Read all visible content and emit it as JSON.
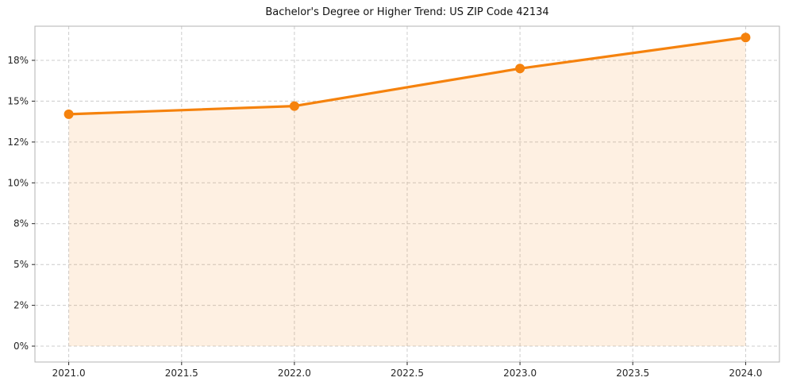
{
  "chart_data": {
    "type": "line",
    "title": "Bachelor's Degree or Higher Trend: US ZIP Code 42134",
    "xlabel": "",
    "ylabel": "",
    "x": [
      2021,
      2022,
      2023,
      2024
    ],
    "values": [
      14.2,
      14.7,
      17.0,
      18.9
    ],
    "area_fill": true,
    "area_baseline": 0,
    "xlim": [
      2020.85,
      2024.15
    ],
    "ylim": [
      -0.97,
      19.59
    ],
    "x_ticks": {
      "values": [
        2021.0,
        2021.5,
        2022.0,
        2022.5,
        2023.0,
        2023.5,
        2024.0
      ],
      "labels": [
        "2021.0",
        "2021.5",
        "2022.0",
        "2022.5",
        "2023.0",
        "2023.5",
        "2024.0"
      ]
    },
    "y_ticks": {
      "values": [
        0,
        2.5,
        5,
        7.5,
        10,
        12.5,
        15,
        17.5
      ],
      "labels": [
        "0%",
        "2%",
        "5%",
        "8%",
        "10%",
        "12%",
        "15%",
        "18%"
      ]
    },
    "grid": {
      "show": true,
      "style": "dashed"
    },
    "legend": {
      "show": false
    },
    "colors": {
      "line": "#f5820d",
      "marker": "#f5820d",
      "fill": "#f5820d",
      "fill_opacity": 0.12,
      "grid": "#cccccc",
      "spine": "#b3b3b3",
      "tick": "#262626",
      "background": "#ffffff"
    }
  }
}
